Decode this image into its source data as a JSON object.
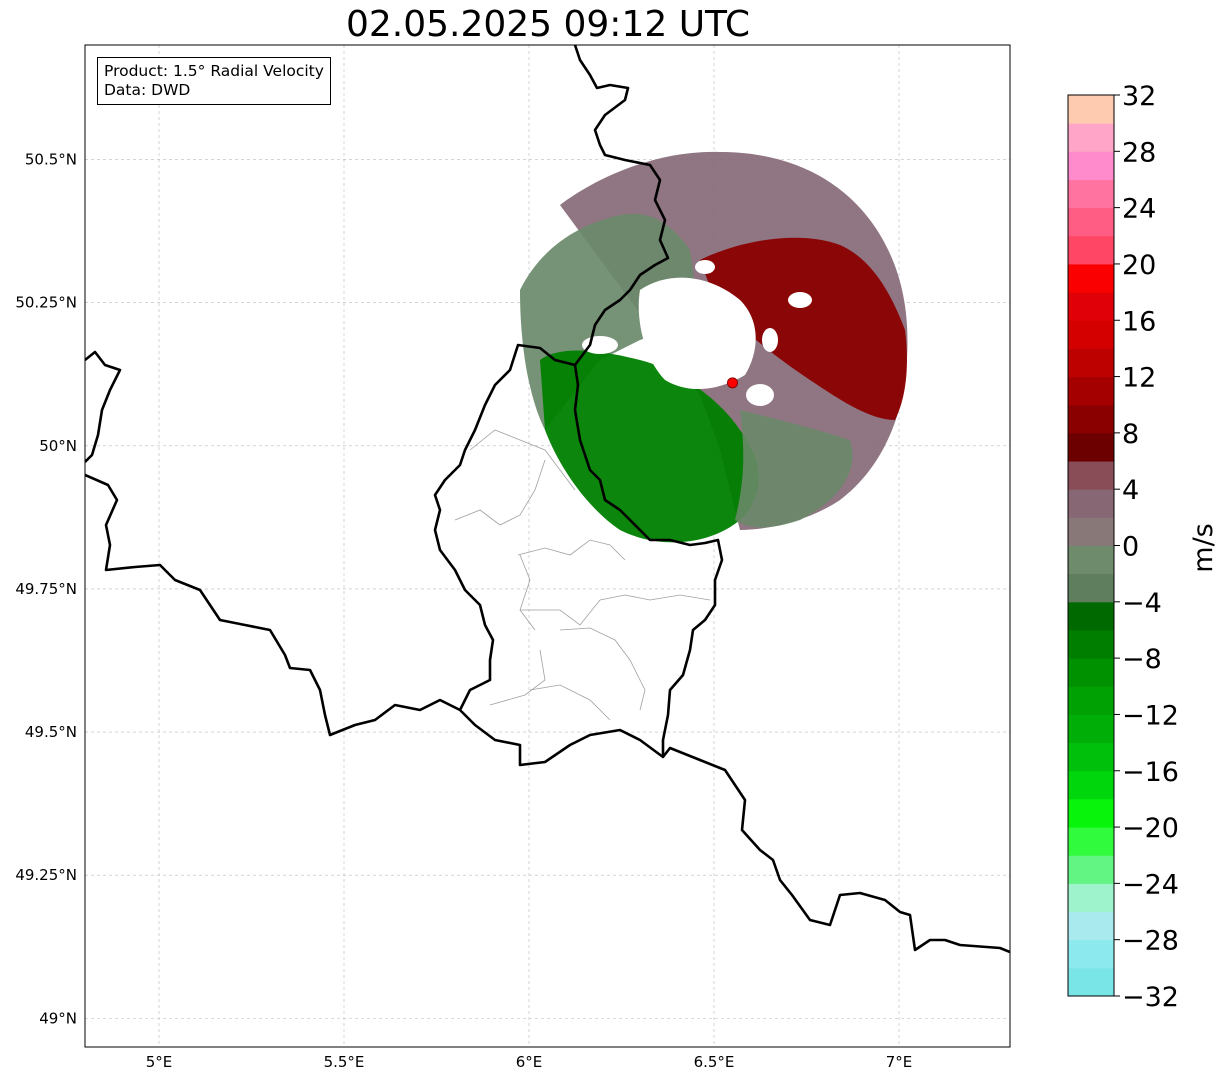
{
  "title": "02.05.2025 09:12 UTC",
  "info": {
    "product_line": "Product: 1.5° Radial Velocity",
    "data_line": "Data: DWD"
  },
  "map": {
    "lon_range": [
      4.8,
      7.3
    ],
    "lat_range": [
      48.95,
      50.7
    ],
    "lon_ticks": [
      {
        "value": 5.0,
        "label": "5°E"
      },
      {
        "value": 5.5,
        "label": "5.5°E"
      },
      {
        "value": 6.0,
        "label": "6°E"
      },
      {
        "value": 6.5,
        "label": "6.5°E"
      },
      {
        "value": 7.0,
        "label": "7°E"
      }
    ],
    "lat_ticks": [
      {
        "value": 49.0,
        "label": "49°N"
      },
      {
        "value": 49.25,
        "label": "49.25°N"
      },
      {
        "value": 49.5,
        "label": "49.5°N"
      },
      {
        "value": 49.75,
        "label": "49.75°N"
      },
      {
        "value": 50.0,
        "label": "50°N"
      },
      {
        "value": 50.25,
        "label": "50.25°N"
      },
      {
        "value": 50.5,
        "label": "50.5°N"
      }
    ],
    "radar_site": {
      "lon": 6.55,
      "lat": 50.11,
      "color": "#ff0000"
    },
    "colors": {
      "border": "#000000",
      "region_border": "#a0a0a0",
      "grid": "#bbbbbb"
    }
  },
  "colorbar": {
    "unit": "m/s",
    "min": -32,
    "max": 32,
    "step": 4,
    "tick_labels": [
      "32",
      "28",
      "24",
      "20",
      "16",
      "12",
      "8",
      "4",
      "0",
      "−4",
      "−8",
      "−12",
      "−16",
      "−20",
      "−24",
      "−28",
      "−32"
    ],
    "colors": [
      "#7ae5e7",
      "#8ceaee",
      "#a8eaee",
      "#9ef3cc",
      "#63f584",
      "#30fb3c",
      "#08f40a",
      "#00d60c",
      "#00c00c",
      "#00ae08",
      "#00a103",
      "#009101",
      "#007e00",
      "#006a00",
      "#5e7e5e",
      "#6e8b6b",
      "#887878",
      "#886774",
      "#884d56",
      "#6c0000",
      "#8a0000",
      "#a40000",
      "#bd0000",
      "#d40000",
      "#e00008",
      "#fb0000",
      "#ff4664",
      "#ff5d84",
      "#ff73a0",
      "#ff8acc",
      "#ffa6c8",
      "#ffcbb0"
    ]
  }
}
